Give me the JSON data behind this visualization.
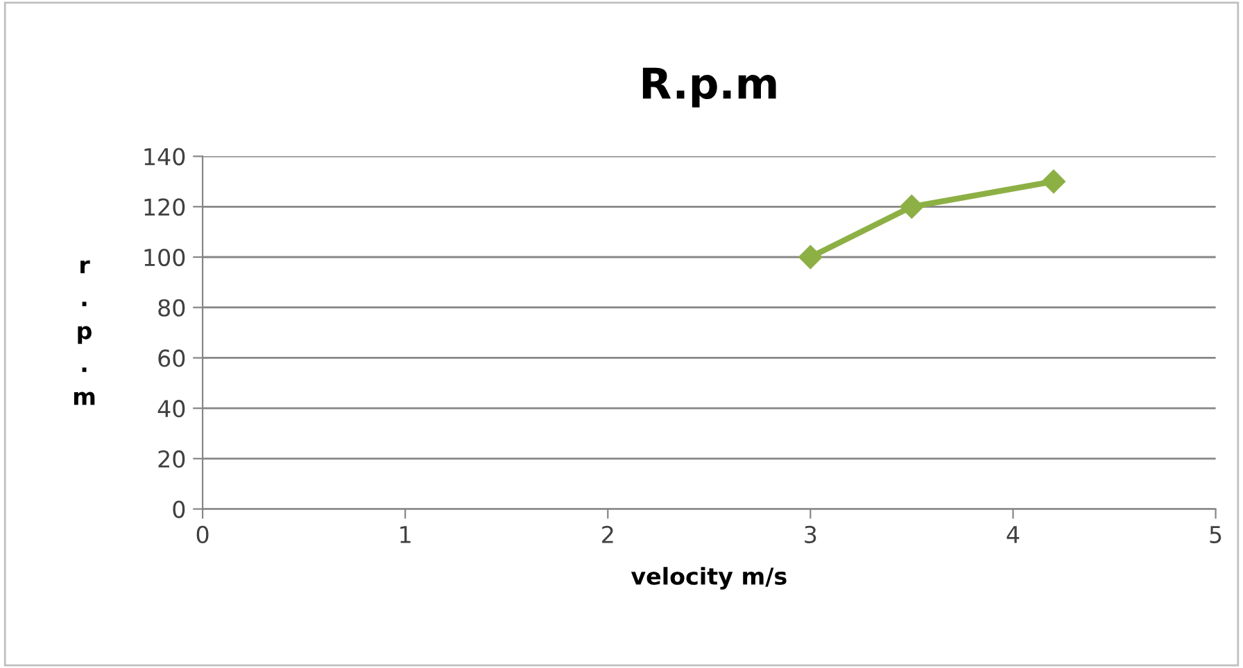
{
  "chart_data": {
    "type": "line",
    "title": "R.p.m",
    "xlabel": "velocity m/s",
    "ylabel": "r.p.m",
    "x": [
      3.0,
      3.5,
      4.2
    ],
    "series": [
      {
        "color": "#8db045",
        "values": [
          100,
          120,
          130
        ]
      }
    ],
    "xlim": [
      0,
      5
    ],
    "xticks": [
      0,
      1,
      2,
      3,
      4,
      5
    ],
    "ylim": [
      0,
      140
    ],
    "yticks": [
      0,
      20,
      40,
      60,
      80,
      100,
      120,
      140
    ],
    "grid": "y",
    "marker": "diamond",
    "line_style": "solid",
    "legend": false
  }
}
